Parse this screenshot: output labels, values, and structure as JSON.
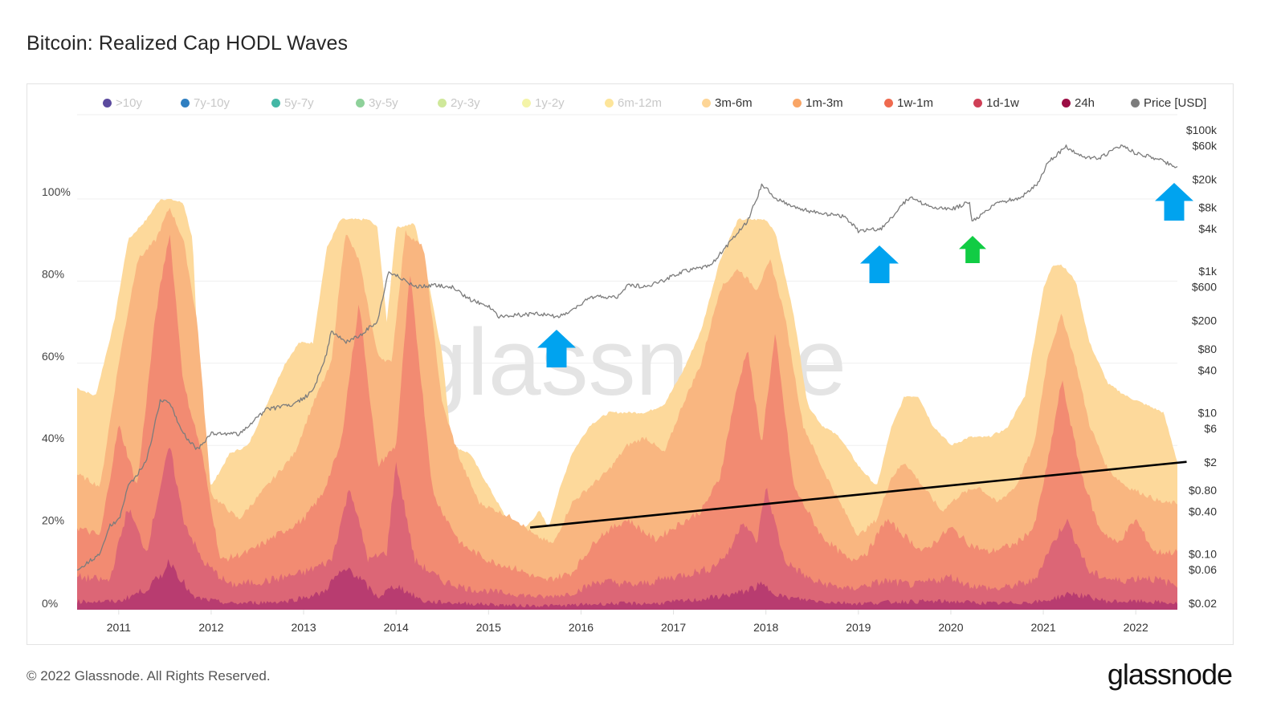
{
  "title": "Bitcoin: Realized Cap HODL Waves",
  "footer": {
    "copyright": "© 2022 Glassnode. All Rights Reserved.",
    "logo": "glassnode"
  },
  "watermark": "glassnode",
  "chart_data": {
    "type": "area",
    "title": "Bitcoin: Realized Cap HODL Waves",
    "stacked": true,
    "legend": {
      "placement": "top",
      "items": [
        {
          "label": ">10y",
          "color": "#5b4a9e",
          "active": false
        },
        {
          "label": "7y-10y",
          "color": "#2f7fc1",
          "active": false
        },
        {
          "label": "5y-7y",
          "color": "#44b7a5",
          "active": false
        },
        {
          "label": "3y-5y",
          "color": "#8ed19a",
          "active": false
        },
        {
          "label": "2y-3y",
          "color": "#cfe89a",
          "active": false
        },
        {
          "label": "1y-2y",
          "color": "#f4f4a8",
          "active": false
        },
        {
          "label": "6m-12m",
          "color": "#fde59a",
          "active": false
        },
        {
          "label": "3m-6m",
          "color": "#fdd596",
          "active": true
        },
        {
          "label": "1m-3m",
          "color": "#f9a566",
          "active": true
        },
        {
          "label": "1w-1m",
          "color": "#ef6a4f",
          "active": true
        },
        {
          "label": "1d-1w",
          "color": "#cf3f56",
          "active": true
        },
        {
          "label": "24h",
          "color": "#9b0d44",
          "active": true
        },
        {
          "label": "Price [USD]",
          "color": "#7c7c7c",
          "active": true
        }
      ]
    },
    "x_ticks": [
      "2011",
      "2012",
      "2013",
      "2014",
      "2015",
      "2016",
      "2017",
      "2018",
      "2019",
      "2020",
      "2021",
      "2022"
    ],
    "x_range": [
      2010.55,
      2022.45
    ],
    "y_left": {
      "ticks": [
        "0%",
        "20%",
        "40%",
        "60%",
        "80%",
        "100%"
      ],
      "range": [
        0,
        100
      ],
      "unit": "%"
    },
    "y_right": {
      "scale": "log",
      "ticks": [
        "$0.02",
        "$0.06",
        "$0.10",
        "$0.40",
        "$0.80",
        "$2",
        "$6",
        "$10",
        "$40",
        "$80",
        "$200",
        "$600",
        "$1k",
        "$4k",
        "$8k",
        "$20k",
        "$60k",
        "$100k"
      ],
      "tick_values": [
        0.02,
        0.06,
        0.1,
        0.4,
        0.8,
        2,
        6,
        10,
        40,
        80,
        200,
        600,
        1000,
        4000,
        8000,
        20000,
        60000,
        100000
      ]
    },
    "series": [
      {
        "name": "3m-6m (cumulative top, ≤6m total)",
        "color": "#fdd99b",
        "x": [
          2010.55,
          2010.75,
          2010.95,
          2011.1,
          2011.3,
          2011.45,
          2011.55,
          2011.7,
          2011.8,
          2011.9,
          2012.0,
          2012.2,
          2012.4,
          2012.6,
          2012.8,
          2012.95,
          2013.1,
          2013.25,
          2013.4,
          2013.55,
          2013.7,
          2013.8,
          2013.9,
          2014.0,
          2014.2,
          2014.35,
          2014.5,
          2014.6,
          2014.8,
          2015.0,
          2015.2,
          2015.4,
          2015.55,
          2015.65,
          2015.75,
          2015.9,
          2016.1,
          2016.3,
          2016.5,
          2016.7,
          2016.9,
          2017.1,
          2017.3,
          2017.5,
          2017.7,
          2017.85,
          2018.0,
          2018.1,
          2018.3,
          2018.45,
          2018.6,
          2018.8,
          2019.0,
          2019.2,
          2019.35,
          2019.5,
          2019.65,
          2019.8,
          2020.0,
          2020.2,
          2020.4,
          2020.6,
          2020.8,
          2021.0,
          2021.1,
          2021.2,
          2021.35,
          2021.5,
          2021.7,
          2021.9,
          2022.1,
          2022.3,
          2022.45
        ],
        "values": [
          54,
          52,
          70,
          90,
          95,
          100,
          100,
          99,
          90,
          40,
          30,
          38,
          40,
          50,
          60,
          65,
          65,
          88,
          95,
          95,
          95,
          93,
          70,
          93,
          94,
          80,
          62,
          40,
          38,
          30,
          22,
          20,
          24,
          20,
          28,
          38,
          45,
          48,
          48,
          48,
          50,
          58,
          68,
          85,
          95,
          95,
          95,
          92,
          72,
          50,
          45,
          42,
          35,
          30,
          44,
          52,
          52,
          45,
          40,
          42,
          42,
          44,
          52,
          78,
          84,
          84,
          80,
          65,
          55,
          52,
          50,
          48,
          36
        ]
      },
      {
        "name": "1m-3m (cumulative top, ≤3m total)",
        "color": "#f9b680",
        "x": [
          2010.55,
          2010.8,
          2011.0,
          2011.2,
          2011.4,
          2011.55,
          2011.7,
          2011.85,
          2012.0,
          2012.3,
          2012.6,
          2012.9,
          2013.1,
          2013.3,
          2013.45,
          2013.6,
          2013.8,
          2013.95,
          2014.1,
          2014.3,
          2014.5,
          2014.7,
          2014.9,
          2015.1,
          2015.3,
          2015.5,
          2015.7,
          2015.9,
          2016.1,
          2016.3,
          2016.5,
          2016.7,
          2016.9,
          2017.1,
          2017.3,
          2017.5,
          2017.7,
          2017.9,
          2018.05,
          2018.2,
          2018.4,
          2018.6,
          2018.8,
          2019.0,
          2019.2,
          2019.35,
          2019.5,
          2019.7,
          2019.9,
          2020.1,
          2020.3,
          2020.5,
          2020.7,
          2020.9,
          2021.05,
          2021.2,
          2021.35,
          2021.5,
          2021.7,
          2021.9,
          2022.1,
          2022.3,
          2022.45
        ],
        "values": [
          33,
          30,
          60,
          85,
          90,
          98,
          90,
          70,
          28,
          22,
          30,
          38,
          50,
          60,
          92,
          85,
          62,
          60,
          92,
          88,
          50,
          36,
          26,
          24,
          22,
          18,
          16,
          26,
          30,
          34,
          40,
          42,
          38,
          50,
          60,
          78,
          83,
          78,
          85,
          72,
          45,
          35,
          26,
          18,
          22,
          32,
          36,
          30,
          24,
          28,
          30,
          26,
          30,
          40,
          62,
          72,
          60,
          45,
          34,
          30,
          28,
          26,
          26
        ]
      },
      {
        "name": "1w-1m (cumulative top, ≤1m total)",
        "color": "#f28b72",
        "x": [
          2010.55,
          2010.8,
          2011.0,
          2011.2,
          2011.4,
          2011.55,
          2011.7,
          2011.9,
          2012.1,
          2012.4,
          2012.7,
          2013.0,
          2013.2,
          2013.4,
          2013.6,
          2013.8,
          2014.0,
          2014.15,
          2014.4,
          2014.7,
          2015.0,
          2015.3,
          2015.6,
          2015.9,
          2016.2,
          2016.5,
          2016.8,
          2017.0,
          2017.3,
          2017.5,
          2017.65,
          2017.8,
          2017.95,
          2018.1,
          2018.3,
          2018.6,
          2018.9,
          2019.1,
          2019.3,
          2019.5,
          2019.7,
          2020.0,
          2020.2,
          2020.4,
          2020.7,
          2020.9,
          2021.05,
          2021.2,
          2021.4,
          2021.6,
          2021.8,
          2022.0,
          2022.2,
          2022.45
        ],
        "values": [
          20,
          18,
          45,
          30,
          72,
          92,
          55,
          38,
          12,
          14,
          18,
          22,
          28,
          40,
          75,
          35,
          40,
          82,
          28,
          16,
          12,
          10,
          7,
          9,
          18,
          22,
          17,
          20,
          24,
          32,
          50,
          64,
          40,
          67,
          30,
          18,
          12,
          14,
          22,
          18,
          14,
          20,
          16,
          14,
          16,
          20,
          36,
          56,
          34,
          20,
          16,
          22,
          14,
          14
        ]
      },
      {
        "name": "1d-1w (cumulative top, ≤1w total)",
        "color": "#dc6676",
        "x": [
          2010.55,
          2010.9,
          2011.1,
          2011.3,
          2011.45,
          2011.55,
          2011.7,
          2011.9,
          2012.2,
          2012.6,
          2013.0,
          2013.3,
          2013.5,
          2013.7,
          2013.9,
          2014.0,
          2014.2,
          2014.5,
          2014.8,
          2015.2,
          2015.6,
          2015.9,
          2016.2,
          2016.6,
          2017.0,
          2017.4,
          2017.6,
          2017.75,
          2017.9,
          2018.0,
          2018.2,
          2018.5,
          2018.9,
          2019.3,
          2019.6,
          2020.0,
          2020.2,
          2020.5,
          2020.9,
          2021.05,
          2021.25,
          2021.5,
          2021.8,
          2022.1,
          2022.45
        ],
        "values": [
          8,
          7,
          25,
          14,
          30,
          40,
          22,
          12,
          6,
          7,
          9,
          12,
          30,
          12,
          14,
          36,
          12,
          7,
          5,
          4,
          3,
          4,
          7,
          6,
          8,
          10,
          14,
          22,
          16,
          30,
          12,
          7,
          5,
          7,
          6,
          8,
          6,
          5,
          7,
          14,
          22,
          9,
          7,
          8,
          6
        ]
      },
      {
        "name": "24h (layer)",
        "color": "#b83c70",
        "x": [
          2010.55,
          2011.0,
          2011.3,
          2011.45,
          2011.55,
          2011.8,
          2012.2,
          2012.8,
          2013.2,
          2013.35,
          2013.5,
          2013.8,
          2014.0,
          2014.3,
          2014.8,
          2015.3,
          2015.8,
          2016.3,
          2016.8,
          2017.3,
          2017.7,
          2017.95,
          2018.2,
          2018.6,
          2019.0,
          2019.5,
          2020.0,
          2020.5,
          2021.0,
          2021.3,
          2021.7,
          2022.1,
          2022.45
        ],
        "values": [
          2,
          2,
          5,
          8,
          12,
          3,
          1.5,
          2,
          4,
          8,
          10,
          3,
          6,
          2,
          1.5,
          1,
          1,
          1.5,
          1.5,
          2.5,
          4,
          6,
          3,
          2,
          1.5,
          2,
          2,
          1.5,
          2,
          4,
          2,
          2,
          1.5
        ]
      },
      {
        "name": "Price [USD]",
        "color": "#7c7c7c",
        "axis": "right",
        "x": [
          2010.55,
          2010.8,
          2010.9,
          2011.0,
          2011.1,
          2011.3,
          2011.45,
          2011.55,
          2011.7,
          2011.85,
          2012.0,
          2012.3,
          2012.6,
          2012.9,
          2013.1,
          2013.25,
          2013.3,
          2013.45,
          2013.6,
          2013.8,
          2013.92,
          2014.05,
          2014.2,
          2014.4,
          2014.6,
          2014.8,
          2015.0,
          2015.1,
          2015.3,
          2015.55,
          2015.75,
          2015.9,
          2016.1,
          2016.4,
          2016.5,
          2016.7,
          2016.9,
          2017.1,
          2017.4,
          2017.6,
          2017.8,
          2017.96,
          2018.1,
          2018.3,
          2018.6,
          2018.85,
          2019.0,
          2019.25,
          2019.45,
          2019.55,
          2019.8,
          2020.0,
          2020.2,
          2020.23,
          2020.5,
          2020.75,
          2020.95,
          2021.05,
          2021.25,
          2021.45,
          2021.6,
          2021.85,
          2022.0,
          2022.2,
          2022.45
        ],
        "values": [
          0.06,
          0.1,
          0.25,
          0.3,
          0.9,
          2,
          15,
          14,
          5,
          3,
          5,
          5,
          11,
          13,
          20,
          70,
          140,
          100,
          120,
          200,
          1000,
          800,
          600,
          630,
          600,
          400,
          320,
          230,
          240,
          250,
          230,
          270,
          430,
          430,
          650,
          600,
          750,
          1000,
          1200,
          2500,
          5000,
          17000,
          11000,
          8000,
          6500,
          6000,
          3700,
          4000,
          8000,
          11000,
          8000,
          7500,
          9500,
          5000,
          9200,
          11000,
          18000,
          35000,
          58000,
          40000,
          40000,
          60000,
          47000,
          40000,
          30000
        ]
      }
    ],
    "annotations": [
      {
        "type": "arrow",
        "direction": "up",
        "color": "#00a3ef",
        "at_date": "2015.7",
        "points_to": "price low (~$230)"
      },
      {
        "type": "arrow",
        "direction": "up",
        "color": "#00a3ef",
        "at_date": "2019.2",
        "points_to": "price low (~$3,700)"
      },
      {
        "type": "arrow",
        "direction": "up",
        "color": "#11cc44",
        "at_date": "2020.2",
        "points_to": "price dip (~$5,000)"
      },
      {
        "type": "arrow",
        "direction": "up",
        "color": "#00a3ef",
        "at_date": "2022.45",
        "points_to": "current price (~$30,000)"
      },
      {
        "type": "trendline",
        "color": "#000000",
        "from": {
          "x": 2015.45,
          "y_pct": 20
        },
        "to": {
          "x": 2022.55,
          "y_pct": 36
        }
      }
    ]
  }
}
